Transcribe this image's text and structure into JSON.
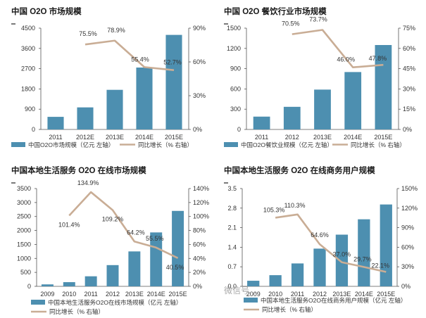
{
  "colors": {
    "bar": "#4d8fb0",
    "line": "#c9ad95",
    "axis": "#555555"
  },
  "watermark": "微信号 ...",
  "chart_data": [
    {
      "type": "bar+line",
      "title": "中国 O2O 市场规模",
      "categories": [
        "2011",
        "2012E",
        "2013E",
        "2014E",
        "2015E"
      ],
      "bars": [
        560,
        980,
        1760,
        2750,
        4200
      ],
      "bar_axis": {
        "min": 0,
        "max": 4500,
        "ticks": [
          "4500",
          "3600",
          "2700",
          "1800",
          "900",
          "0"
        ]
      },
      "line_x": [
        1,
        2,
        3,
        4
      ],
      "line": [
        75.5,
        78.9,
        55.4,
        52.7
      ],
      "line_labels": [
        "75.5%",
        "78.9%",
        "55.4%",
        "52.7%"
      ],
      "line_axis": {
        "min": 0,
        "max": 90,
        "ticks": [
          "90%",
          "60%",
          "30%",
          "0%"
        ]
      },
      "legend_bar": "中国O2O市场规模（亿元 左轴）",
      "legend_line": "同比增长（% 右轴）"
    },
    {
      "type": "bar+line",
      "title": "中国 O2O 餐饮行业市场规模",
      "categories": [
        "2011",
        "2012",
        "2013E",
        "2014E",
        "2015E"
      ],
      "bars": [
        190,
        335,
        590,
        850,
        1250
      ],
      "bar_axis": {
        "min": 0,
        "max": 1500,
        "ticks": [
          "1500",
          "1200",
          "900",
          "600",
          "300",
          "0"
        ]
      },
      "line_x": [
        1,
        2,
        3,
        4
      ],
      "line": [
        70.5,
        73.7,
        46.0,
        47.8
      ],
      "line_labels": [
        "70.5%",
        "73.7%",
        "46.0%",
        "47.8%"
      ],
      "line_axis": {
        "min": 0,
        "max": 75,
        "ticks": [
          "75%",
          "60%",
          "45%",
          "30%",
          "15%",
          "0%"
        ]
      },
      "legend_bar": "中国O2O餐饮业规模（亿元 左轴）",
      "legend_line": "同比增长（% 右轴）"
    },
    {
      "type": "bar+line",
      "title": "中国本地生活服务 O2O 在线市场规模",
      "categories": [
        "2009",
        "2010",
        "2011",
        "2012",
        "2013E",
        "2014E",
        "2015E"
      ],
      "bars": [
        70,
        150,
        360,
        760,
        1250,
        1930,
        2700
      ],
      "bar_axis": {
        "min": 0,
        "max": 3500,
        "ticks": [
          "3500",
          "3000",
          "2500",
          "2000",
          "1500",
          "1000",
          "500",
          "0"
        ]
      },
      "line_x": [
        1,
        2,
        3,
        4,
        5,
        6
      ],
      "line": [
        101.4,
        134.9,
        109.2,
        64.2,
        55.5,
        40.5
      ],
      "line_labels": [
        "101.4%",
        "134.9%",
        "109.2%",
        "64.2%",
        "55.5%",
        "40.5%"
      ],
      "line_axis": {
        "min": 0,
        "max": 140,
        "ticks": [
          "140%",
          "120%",
          "100%",
          "80%",
          "60%",
          "40%",
          "20%",
          "0%"
        ]
      },
      "legend_bar": "中国本地生活服务O2O在线市场规模（亿元 左轴）",
      "legend_line": "同比增长（% 右轴）"
    },
    {
      "type": "bar+line",
      "title": "中国本地生活服务 O2O 在线商务用户规模",
      "categories": [
        "2009",
        "2010",
        "2011",
        "2012",
        "2013E",
        "2014E",
        "2015E"
      ],
      "bars": [
        0.2,
        0.4,
        0.82,
        1.35,
        1.85,
        2.4,
        2.93
      ],
      "bar_axis": {
        "min": 0,
        "max": 3.5,
        "ticks": [
          "3.5",
          "2.8",
          "2.1",
          "1.4",
          "0.7",
          "0.0"
        ]
      },
      "line_x": [
        1,
        2,
        3,
        4,
        5,
        6
      ],
      "line": [
        105.3,
        110.3,
        64.6,
        37.0,
        29.7,
        22.1
      ],
      "line_labels": [
        "105.3%",
        "110.3%",
        "64.6%",
        "37.0%",
        "29.7%",
        "22.1%"
      ],
      "line_axis": {
        "min": 0,
        "max": 150,
        "ticks": [
          "150%",
          "120%",
          "90%",
          "60%",
          "30%",
          "0%"
        ]
      },
      "legend_bar": "中国本地生活服务O2O在线商务用户规模（亿元 左轴）",
      "legend_line": "同比增长（% 右轴）"
    }
  ]
}
